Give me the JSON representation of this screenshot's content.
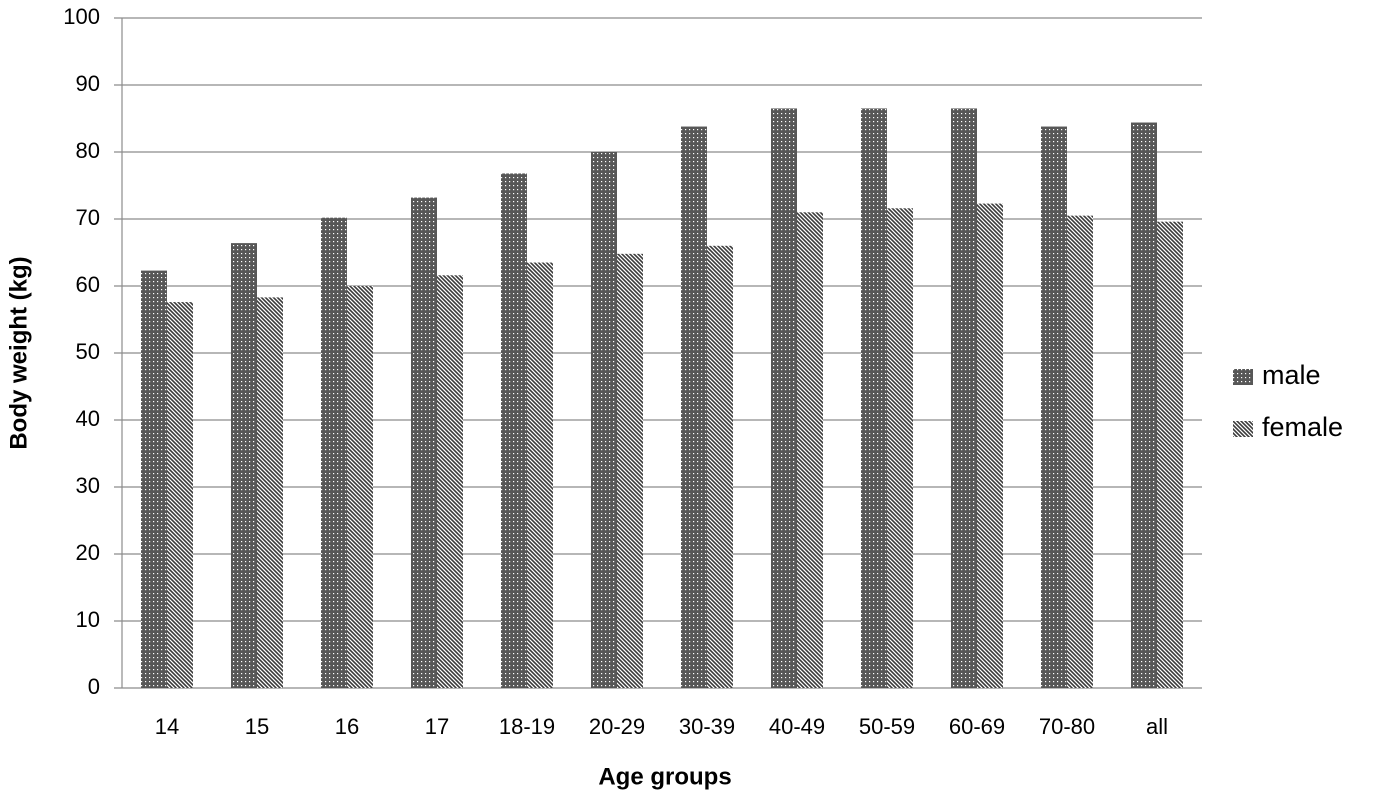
{
  "chart_data": {
    "type": "bar",
    "x_label": "Age groups",
    "y_label": "Body weight  (kg)",
    "categories": [
      "14",
      "15",
      "16",
      "17",
      "18-19",
      "20-29",
      "30-39",
      "40-49",
      "50-59",
      "60-69",
      "70-80",
      "all"
    ],
    "series": [
      {
        "name": "male",
        "color": "#3a3a3a",
        "values": [
          62.3,
          66.4,
          70.2,
          73.2,
          76.8,
          80.0,
          83.8,
          86.5,
          86.5,
          86.5,
          83.8,
          84.4
        ]
      },
      {
        "name": "female",
        "color": "#3a3a3a",
        "values": [
          57.6,
          58.3,
          60.0,
          61.6,
          63.5,
          64.8,
          66.0,
          71.0,
          71.6,
          72.3,
          70.5,
          69.6
        ]
      }
    ],
    "ylim": [
      0,
      100
    ],
    "yticks": [
      0,
      10,
      20,
      30,
      40,
      50,
      60,
      70,
      80,
      90,
      100
    ],
    "grid": true,
    "legend": "right"
  }
}
